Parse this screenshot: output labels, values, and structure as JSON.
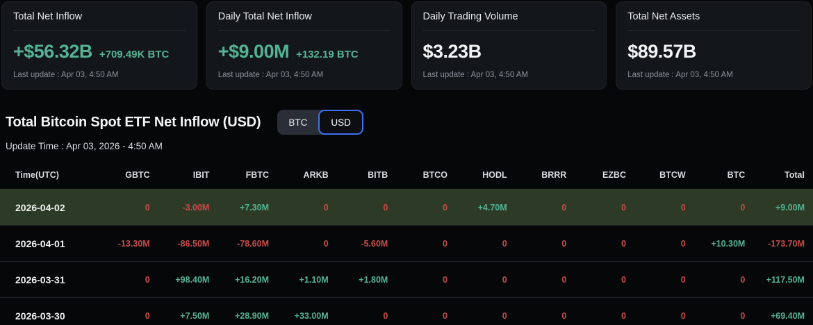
{
  "cards": [
    {
      "title": "Total Net Inflow",
      "value": "+$56.32B",
      "value_color": "green",
      "sub_value": "+709.49K BTC",
      "last_update": "Last update : Apr 03, 4:50 AM"
    },
    {
      "title": "Daily Total Net Inflow",
      "value": "+$9.00M",
      "value_color": "green",
      "sub_value": "+132.19 BTC",
      "last_update": "Last update : Apr 03, 4:50 AM"
    },
    {
      "title": "Daily Trading Volume",
      "value": "$3.23B",
      "value_color": "white",
      "sub_value": "",
      "last_update": "Last update : Apr 03, 4:50 AM"
    },
    {
      "title": "Total Net Assets",
      "value": "$89.57B",
      "value_color": "white",
      "sub_value": "",
      "last_update": "Last update : Apr 03, 4:50 AM"
    }
  ],
  "section": {
    "title": "Total Bitcoin Spot ETF Net Inflow (USD)",
    "update_time": "Update Time : Apr 03, 2026 - 4:50 AM",
    "toggle": {
      "options": [
        "BTC",
        "USD"
      ],
      "selected": "USD"
    }
  },
  "table": {
    "columns": [
      "Time(UTC)",
      "GBTC",
      "IBIT",
      "FBTC",
      "ARKB",
      "BITB",
      "BTCO",
      "HODL",
      "BRRR",
      "EZBC",
      "BTCW",
      "BTC",
      "Total"
    ],
    "rows": [
      {
        "date": "2026-04-02",
        "highlighted": true,
        "values": [
          "0",
          "-3.00M",
          "+7.30M",
          "0",
          "0",
          "0",
          "+4.70M",
          "0",
          "0",
          "0",
          "0",
          "+9.00M"
        ]
      },
      {
        "date": "2026-04-01",
        "highlighted": false,
        "values": [
          "-13.30M",
          "-86.50M",
          "-78.60M",
          "0",
          "-5.60M",
          "0",
          "0",
          "0",
          "0",
          "0",
          "+10.30M",
          "-173.70M"
        ]
      },
      {
        "date": "2026-03-31",
        "highlighted": false,
        "values": [
          "0",
          "+98.40M",
          "+16.20M",
          "+1.10M",
          "+1.80M",
          "0",
          "0",
          "0",
          "0",
          "0",
          "0",
          "+117.50M"
        ]
      },
      {
        "date": "2026-03-30",
        "highlighted": false,
        "values": [
          "0",
          "+7.50M",
          "+28.90M",
          "+33.00M",
          "0",
          "0",
          "0",
          "0",
          "0",
          "0",
          "0",
          "+69.40M"
        ]
      }
    ]
  },
  "colors": {
    "positive": "#54b393",
    "negative": "#c84b4b",
    "accent_blue": "#3f70f2",
    "highlight_row_bg": "#2c3a26",
    "card_bg": "#13161b",
    "page_bg": "#060709"
  }
}
